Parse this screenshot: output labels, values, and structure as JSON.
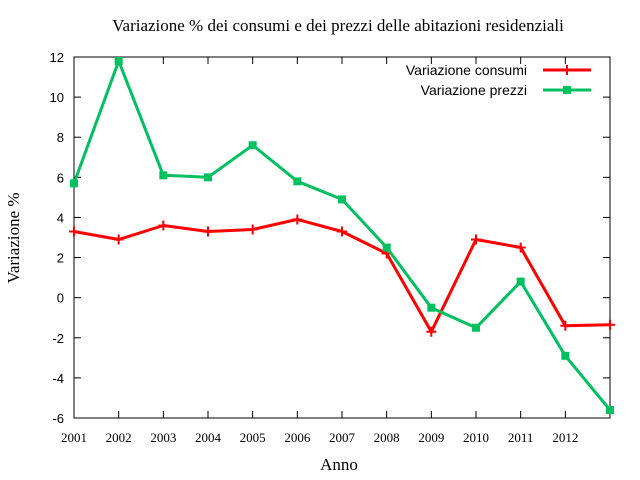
{
  "chart_data": {
    "type": "line",
    "title": "Variazione % dei consumi e dei prezzi delle abitazioni residenziali",
    "xlabel": "Anno",
    "ylabel": "Variazione %",
    "x": [
      2001,
      2002,
      2003,
      2004,
      2005,
      2006,
      2007,
      2008,
      2009,
      2010,
      2011,
      2012,
      2013
    ],
    "xlim": [
      2001,
      2013
    ],
    "ylim": [
      -6,
      12
    ],
    "x_ticks": [
      "2001",
      "2002",
      "2003",
      "2004",
      "2005",
      "2006",
      "2007",
      "2008",
      "2009",
      "2010",
      "2011",
      "2012"
    ],
    "y_ticks": [
      "-6",
      "-4",
      "-2",
      "0",
      "2",
      "4",
      "6",
      "8",
      "10",
      "12"
    ],
    "grid": false,
    "legend_position": "top-right",
    "series": [
      {
        "name": "Variazione consumi",
        "color": "#ff0000",
        "marker": "plus",
        "values": [
          3.3,
          2.9,
          3.6,
          3.3,
          3.4,
          3.9,
          3.3,
          2.2,
          -1.7,
          2.9,
          2.5,
          -1.4,
          -1.35
        ]
      },
      {
        "name": "Variazione prezzi",
        "color": "#00c060",
        "marker": "square",
        "values": [
          5.7,
          11.8,
          6.1,
          6.0,
          7.6,
          5.8,
          4.9,
          2.5,
          -0.5,
          -1.5,
          0.8,
          -2.9,
          -5.6
        ]
      }
    ]
  }
}
